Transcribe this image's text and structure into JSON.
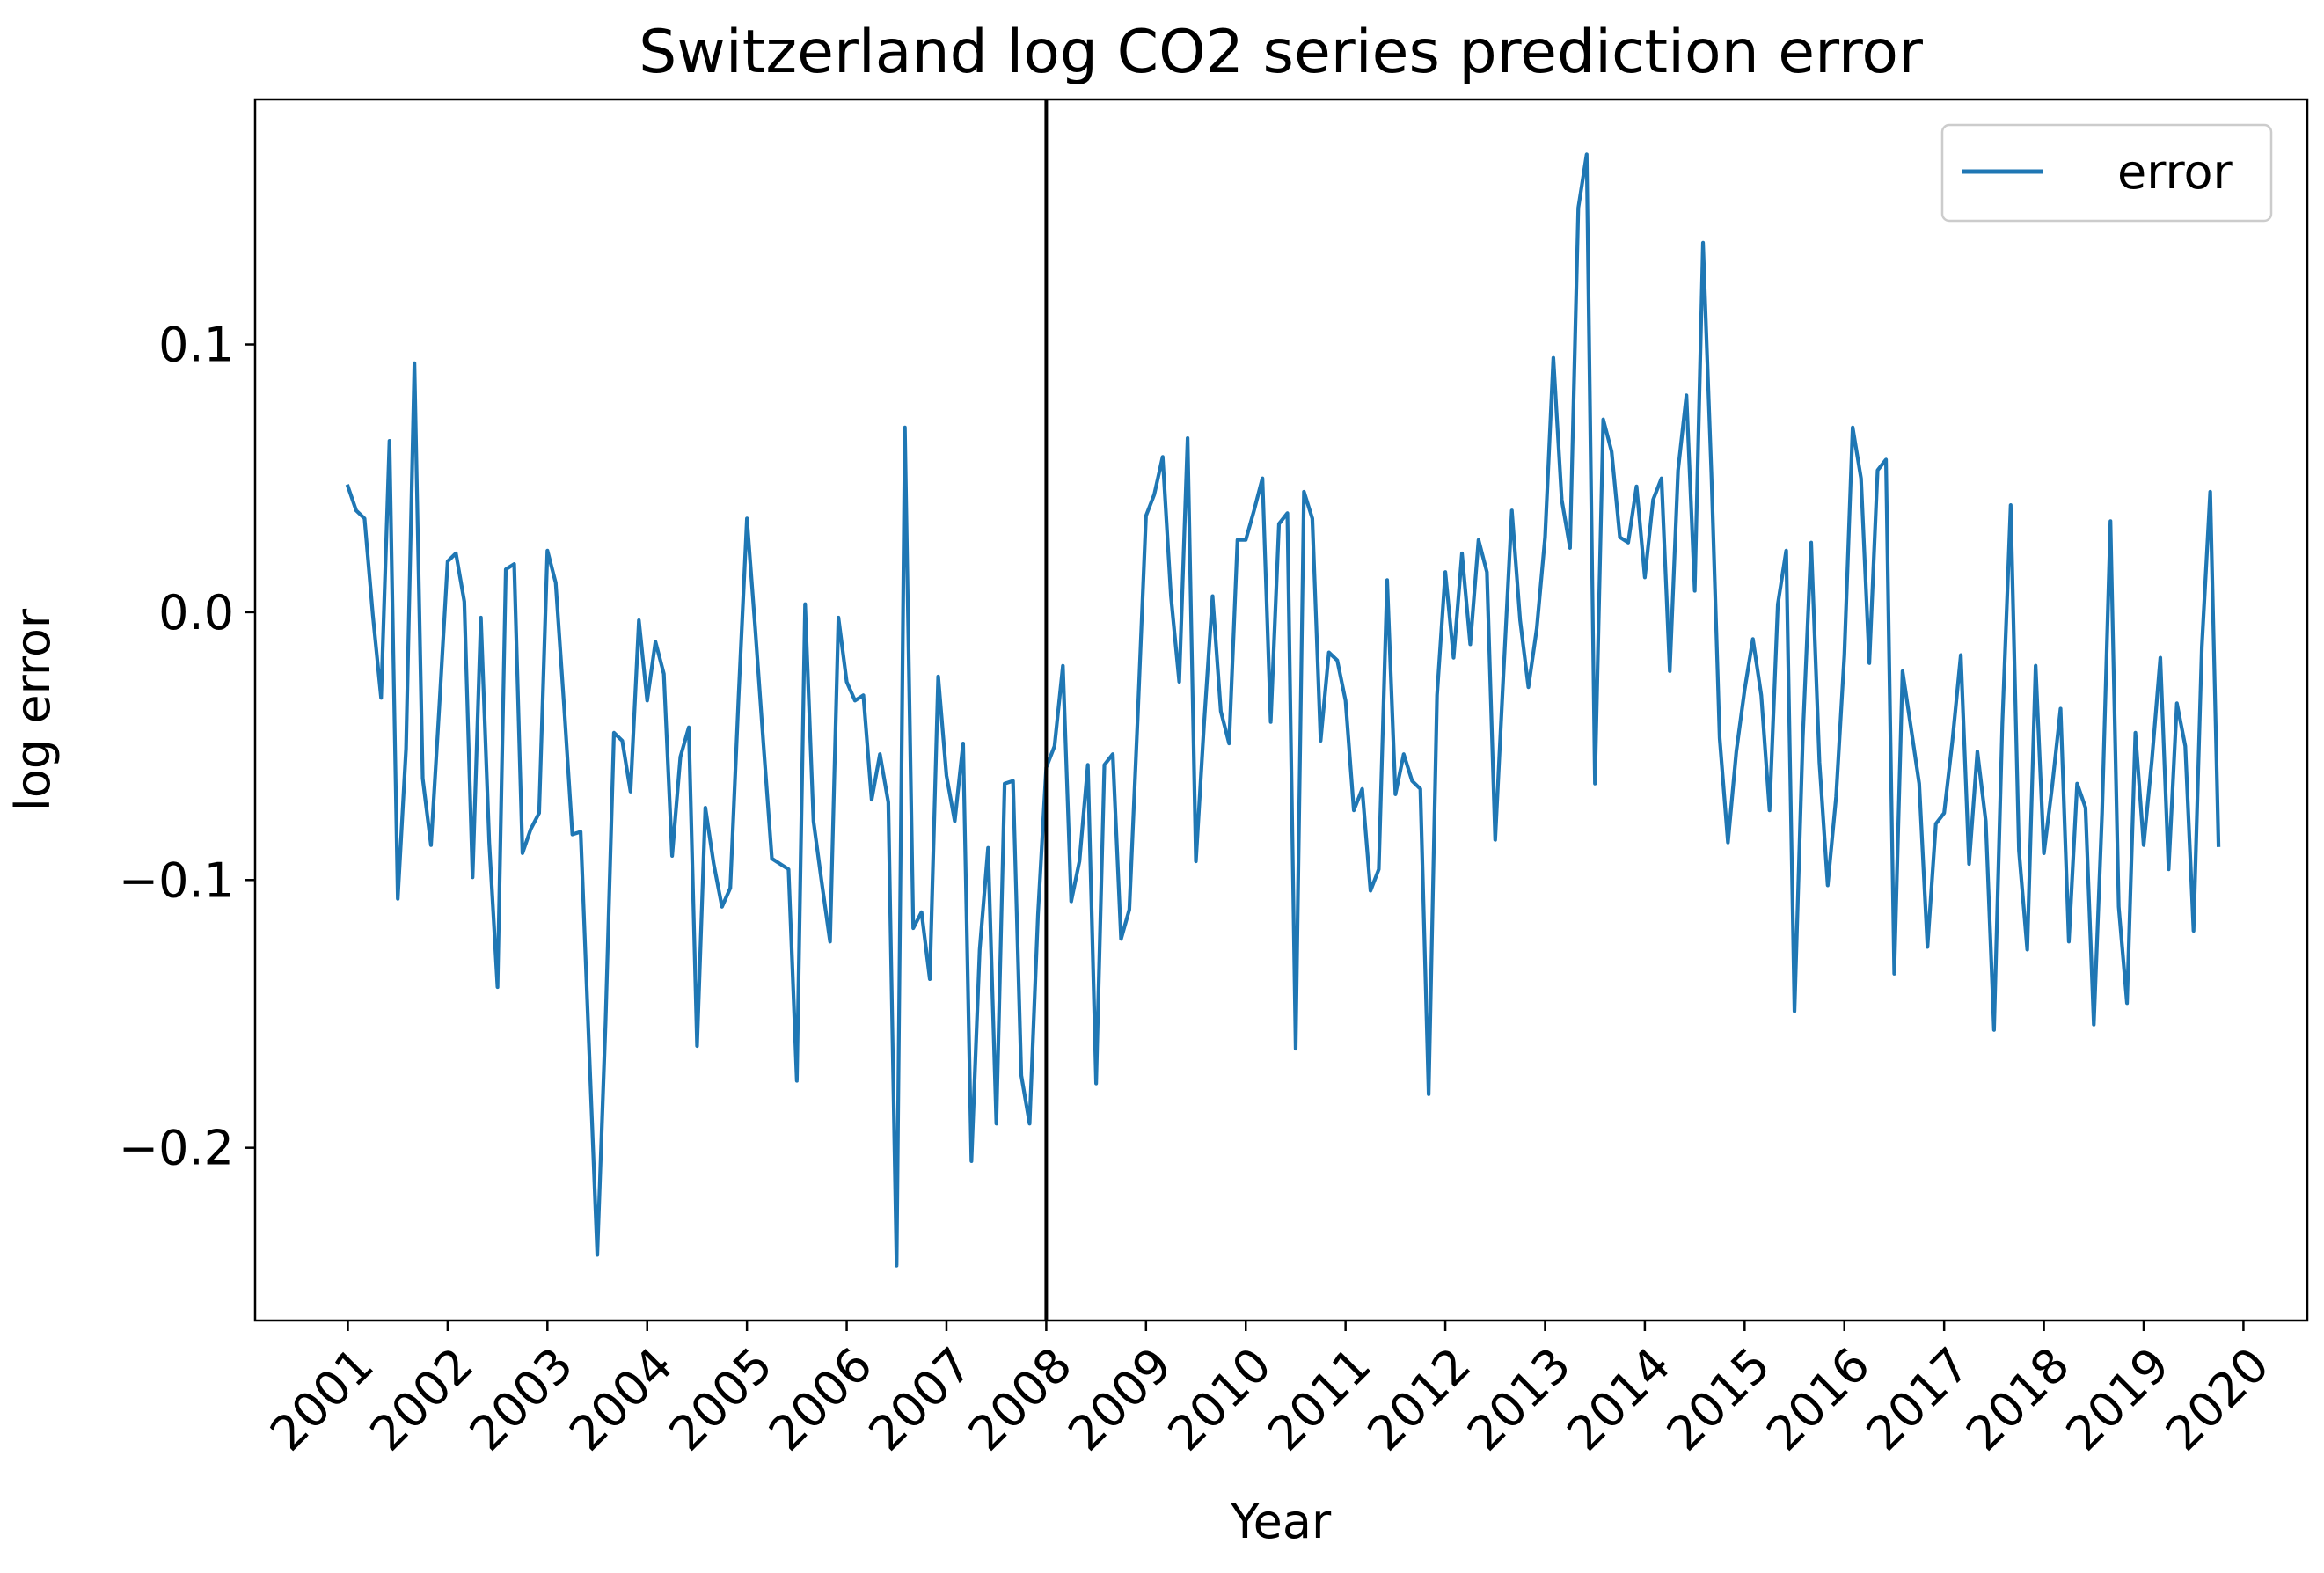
{
  "chart_data": {
    "type": "line",
    "title": "Switzerland log CO2 series prediction error",
    "xlabel": "Year",
    "ylabel": "log error",
    "xlim": [
      2000.07,
      2020.64
    ],
    "ylim": [
      -0.2645,
      0.1915
    ],
    "x_ticks": [
      "2001",
      "2002",
      "2003",
      "2004",
      "2005",
      "2006",
      "2007",
      "2008",
      "2009",
      "2010",
      "2011",
      "2012",
      "2013",
      "2014",
      "2015",
      "2016",
      "2017",
      "2018",
      "2019",
      "2020"
    ],
    "y_ticks": [
      {
        "value": 0.1,
        "label": "0.1"
      },
      {
        "value": 0.0,
        "label": "0.0"
      },
      {
        "value": -0.1,
        "label": "−0.1"
      },
      {
        "value": -0.2,
        "label": "−0.2"
      }
    ],
    "vertical_line": {
      "x": 2008.0,
      "color": "#000000"
    },
    "legend": {
      "position": "top-right",
      "entries": [
        {
          "label": "error",
          "color": "#1f77b4"
        }
      ]
    },
    "grid": false,
    "series": [
      {
        "name": "error",
        "color": "#1f77b4",
        "x": [
          2001.0,
          2001.083,
          2001.167,
          2001.25,
          2001.333,
          2001.417,
          2001.5,
          2001.583,
          2001.667,
          2001.75,
          2001.833,
          2001.917,
          2002.0,
          2002.083,
          2002.167,
          2002.25,
          2002.333,
          2002.417,
          2002.5,
          2002.583,
          2002.667,
          2002.75,
          2002.833,
          2002.917,
          2003.0,
          2003.083,
          2003.167,
          2003.25,
          2003.333,
          2003.417,
          2003.5,
          2003.583,
          2003.667,
          2003.75,
          2003.833,
          2003.917,
          2004.0,
          2004.083,
          2004.167,
          2004.25,
          2004.333,
          2004.417,
          2004.5,
          2004.583,
          2004.667,
          2004.75,
          2004.833,
          2004.917,
          2005.0,
          2005.083,
          2005.167,
          2005.25,
          2005.333,
          2005.417,
          2005.5,
          2005.583,
          2005.667,
          2005.75,
          2005.833,
          2005.917,
          2006.0,
          2006.083,
          2006.167,
          2006.25,
          2006.333,
          2006.417,
          2006.5,
          2006.583,
          2006.667,
          2006.75,
          2006.833,
          2006.917,
          2007.0,
          2007.083,
          2007.167,
          2007.25,
          2007.333,
          2007.417,
          2007.5,
          2007.583,
          2007.667,
          2007.75,
          2007.833,
          2007.917,
          2008.0,
          2008.083,
          2008.167,
          2008.25,
          2008.333,
          2008.417,
          2008.5,
          2008.583,
          2008.667,
          2008.75,
          2008.833,
          2008.917,
          2009.0,
          2009.083,
          2009.167,
          2009.25,
          2009.333,
          2009.417,
          2009.5,
          2009.583,
          2009.667,
          2009.75,
          2009.833,
          2009.917,
          2010.0,
          2010.083,
          2010.167,
          2010.25,
          2010.333,
          2010.417,
          2010.5,
          2010.583,
          2010.667,
          2010.75,
          2010.833,
          2010.917,
          2011.0,
          2011.083,
          2011.167,
          2011.25,
          2011.333,
          2011.417,
          2011.5,
          2011.583,
          2011.667,
          2011.75,
          2011.833,
          2011.917,
          2012.0,
          2012.083,
          2012.167,
          2012.25,
          2012.333,
          2012.417,
          2012.5,
          2012.583,
          2012.667,
          2012.75,
          2012.833,
          2012.917,
          2013.0,
          2013.083,
          2013.167,
          2013.25,
          2013.333,
          2013.417,
          2013.5,
          2013.583,
          2013.667,
          2013.75,
          2013.833,
          2013.917,
          2014.0,
          2014.083,
          2014.167,
          2014.25,
          2014.333,
          2014.417,
          2014.5,
          2014.583,
          2014.667,
          2014.75,
          2014.833,
          2014.917,
          2015.0,
          2015.083,
          2015.167,
          2015.25,
          2015.333,
          2015.417,
          2015.5,
          2015.583,
          2015.667,
          2015.75,
          2015.833,
          2015.917,
          2016.0,
          2016.083,
          2016.167,
          2016.25,
          2016.333,
          2016.417,
          2016.5,
          2016.583,
          2016.667,
          2016.75,
          2016.833,
          2016.917,
          2017.0,
          2017.083,
          2017.167,
          2017.25,
          2017.333,
          2017.417,
          2017.5,
          2017.583,
          2017.667,
          2017.75,
          2017.833,
          2017.917,
          2018.0,
          2018.083,
          2018.167,
          2018.25,
          2018.333,
          2018.417,
          2018.5,
          2018.583,
          2018.667,
          2018.75,
          2018.833,
          2018.917,
          2019.0,
          2019.083,
          2019.167,
          2019.25,
          2019.333,
          2019.417,
          2019.5,
          2019.583,
          2019.667,
          2019.75
        ],
        "y": [
          0.047,
          0.038,
          0.035,
          -0.001,
          -0.032,
          0.064,
          -0.107,
          -0.051,
          0.093,
          -0.062,
          -0.087,
          -0.035,
          0.019,
          0.022,
          0.004,
          -0.099,
          -0.002,
          -0.086,
          -0.14,
          0.016,
          0.018,
          -0.09,
          -0.081,
          -0.075,
          0.023,
          0.011,
          -0.035,
          -0.083,
          -0.082,
          -0.162,
          -0.24,
          -0.153,
          -0.045,
          -0.048,
          -0.067,
          -0.003,
          -0.033,
          -0.011,
          -0.023,
          -0.091,
          -0.054,
          -0.043,
          -0.162,
          -0.073,
          -0.094,
          -0.11,
          -0.103,
          -0.031,
          0.035,
          -0.006,
          -0.05,
          -0.092,
          -0.094,
          -0.096,
          -0.175,
          0.003,
          -0.078,
          -0.101,
          -0.123,
          -0.002,
          -0.026,
          -0.033,
          -0.031,
          -0.07,
          -0.053,
          -0.071,
          -0.244,
          0.069,
          -0.118,
          -0.112,
          -0.137,
          -0.024,
          -0.061,
          -0.078,
          -0.049,
          -0.205,
          -0.126,
          -0.088,
          -0.191,
          -0.064,
          -0.063,
          -0.173,
          -0.191,
          -0.113,
          -0.058,
          -0.05,
          -0.02,
          -0.108,
          -0.093,
          -0.057,
          -0.176,
          -0.057,
          -0.053,
          -0.122,
          -0.111,
          -0.039,
          0.036,
          0.044,
          0.058,
          0.006,
          -0.026,
          0.065,
          -0.093,
          -0.041,
          0.006,
          -0.037,
          -0.049,
          0.027,
          0.027,
          0.038,
          0.05,
          -0.041,
          0.033,
          0.037,
          -0.163,
          0.045,
          0.035,
          -0.048,
          -0.015,
          -0.018,
          -0.033,
          -0.074,
          -0.066,
          -0.104,
          -0.096,
          0.012,
          -0.068,
          -0.053,
          -0.063,
          -0.066,
          -0.18,
          -0.031,
          0.015,
          -0.017,
          0.022,
          -0.012,
          0.027,
          0.015,
          -0.085,
          -0.023,
          0.038,
          -0.003,
          -0.028,
          -0.006,
          0.028,
          0.095,
          0.042,
          0.024,
          0.151,
          0.171,
          -0.064,
          0.072,
          0.06,
          0.028,
          0.026,
          0.047,
          0.013,
          0.042,
          0.05,
          -0.022,
          0.053,
          0.081,
          0.008,
          0.138,
          0.052,
          -0.047,
          -0.086,
          -0.052,
          -0.029,
          -0.01,
          -0.031,
          -0.074,
          0.003,
          0.023,
          -0.149,
          -0.047,
          0.026,
          -0.056,
          -0.102,
          -0.069,
          -0.016,
          0.069,
          0.05,
          -0.019,
          0.053,
          0.057,
          -0.135,
          -0.022,
          -0.043,
          -0.064,
          -0.125,
          -0.079,
          -0.075,
          -0.048,
          -0.016,
          -0.094,
          -0.052,
          -0.078,
          -0.156,
          -0.042,
          0.04,
          -0.089,
          -0.126,
          -0.02,
          -0.09,
          -0.065,
          -0.036,
          -0.123,
          -0.064,
          -0.073,
          -0.154,
          -0.075,
          0.034,
          -0.11,
          -0.146,
          -0.045,
          -0.087,
          -0.055,
          -0.017,
          -0.096,
          -0.034,
          -0.05,
          -0.119,
          -0.013,
          0.045,
          -0.087
        ]
      }
    ]
  }
}
